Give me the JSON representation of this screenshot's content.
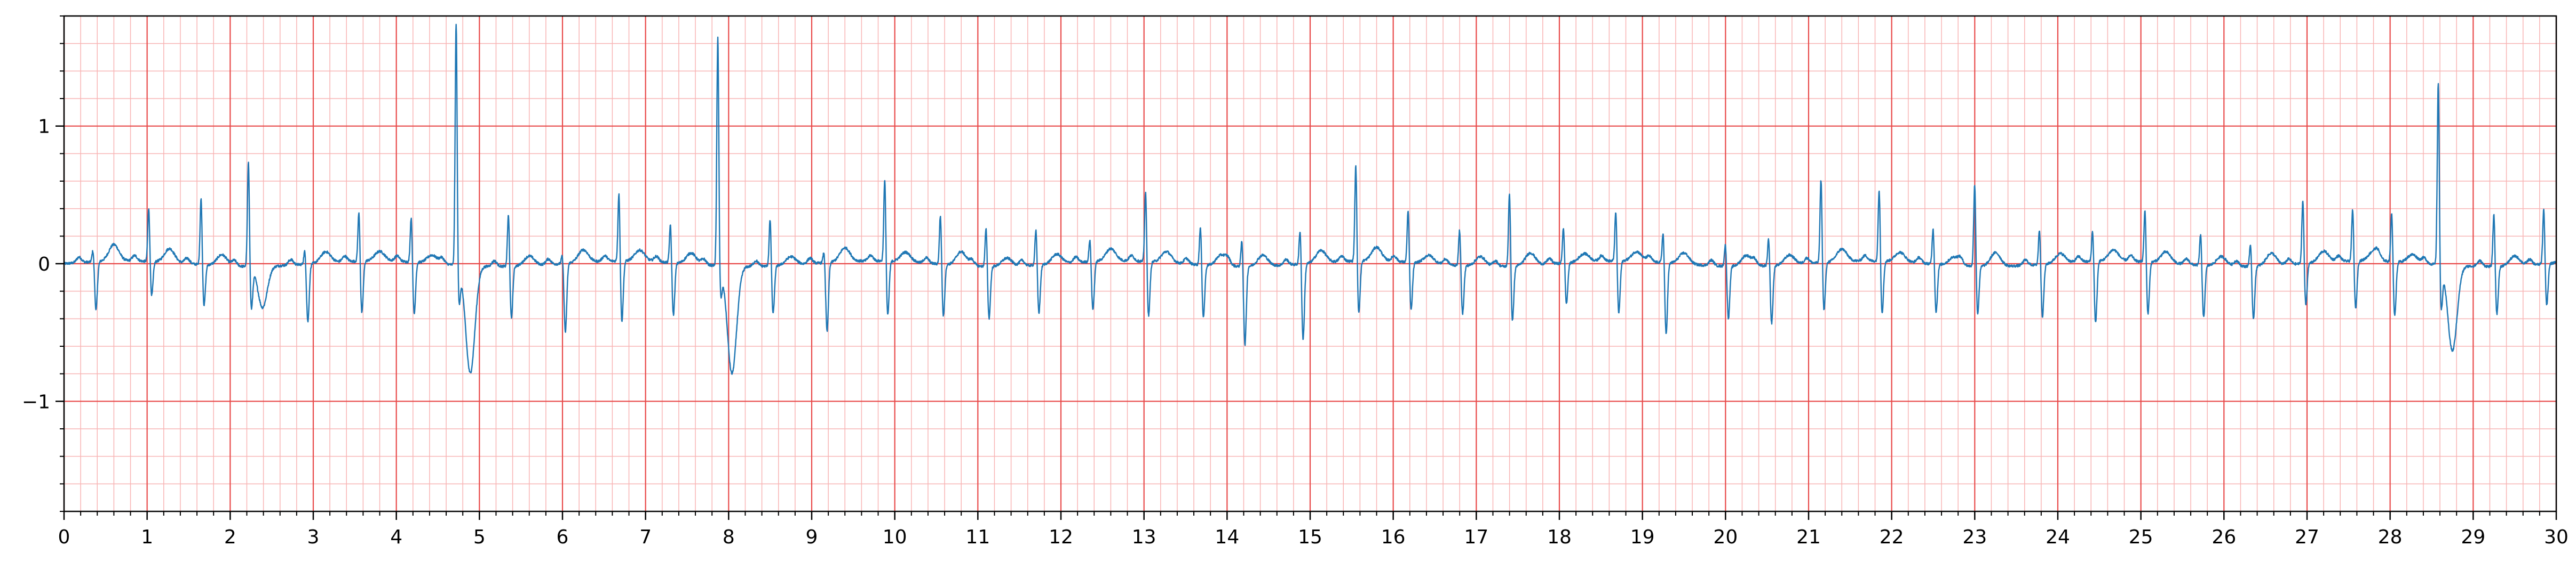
{
  "chart_data": {
    "type": "line",
    "title": "",
    "xlabel": "",
    "ylabel": "",
    "xlim": [
      0,
      30
    ],
    "ylim": [
      -1.8,
      1.8
    ],
    "x_ticks": [
      0,
      1,
      2,
      3,
      4,
      5,
      6,
      7,
      8,
      9,
      10,
      11,
      12,
      13,
      14,
      15,
      16,
      17,
      18,
      19,
      20,
      21,
      22,
      23,
      24,
      25,
      26,
      27,
      28,
      29,
      30
    ],
    "x_tick_labels": [
      "0",
      "1",
      "2",
      "3",
      "4",
      "5",
      "6",
      "7",
      "8",
      "9",
      "10",
      "11",
      "12",
      "13",
      "14",
      "15",
      "16",
      "17",
      "18",
      "19",
      "20",
      "21",
      "22",
      "23",
      "24",
      "25",
      "26",
      "27",
      "28",
      "29",
      "30"
    ],
    "y_ticks": [
      -1,
      0,
      1
    ],
    "y_tick_labels": [
      "−1",
      "0",
      "1"
    ],
    "grid": true,
    "major_grid": {
      "x_step": 1,
      "y_step": 1
    },
    "minor_grid": {
      "x_step": 0.2,
      "y_step": 0.2
    },
    "legend": "none",
    "colors": {
      "trace": "#1f77b4",
      "major_grid": "#e84a4a",
      "minor_grid": "#f8b4b4",
      "frame": "#000000"
    },
    "series": [
      {
        "beats": [
          {
            "t": 0.35,
            "amp": 0.1,
            "depth": -0.35,
            "twave": 0.12
          },
          {
            "t": 1.02,
            "amp": 0.4,
            "depth": -0.25,
            "twave": 0.1
          },
          {
            "t": 1.65,
            "amp": 0.5,
            "depth": -0.3,
            "twave": 0.08
          },
          {
            "t": 2.22,
            "amp": 0.78,
            "depth": -0.3,
            "twave": -0.3
          },
          {
            "t": 2.9,
            "amp": 0.12,
            "depth": -0.42,
            "twave": 0.08
          },
          {
            "t": 3.55,
            "amp": 0.38,
            "depth": -0.38,
            "twave": 0.07
          },
          {
            "t": 4.18,
            "amp": 0.35,
            "depth": -0.38,
            "twave": 0.06
          },
          {
            "t": 4.72,
            "amp": 1.78,
            "depth": -0.25,
            "twave": -0.78
          },
          {
            "t": 5.35,
            "amp": 0.4,
            "depth": -0.38,
            "twave": 0.07
          },
          {
            "t": 6.0,
            "amp": 0.08,
            "depth": -0.5,
            "twave": 0.09
          },
          {
            "t": 6.68,
            "amp": 0.52,
            "depth": -0.44,
            "twave": 0.08
          },
          {
            "t": 7.3,
            "amp": 0.3,
            "depth": -0.38,
            "twave": 0.08
          },
          {
            "t": 7.87,
            "amp": 1.68,
            "depth": -0.2,
            "twave": -0.78
          },
          {
            "t": 8.5,
            "amp": 0.36,
            "depth": -0.35,
            "twave": 0.06
          },
          {
            "t": 9.15,
            "amp": 0.1,
            "depth": -0.5,
            "twave": 0.1
          },
          {
            "t": 9.88,
            "amp": 0.62,
            "depth": -0.4,
            "twave": 0.07
          },
          {
            "t": 10.55,
            "amp": 0.38,
            "depth": -0.38,
            "twave": 0.1
          },
          {
            "t": 11.1,
            "amp": 0.3,
            "depth": -0.38,
            "twave": 0.06
          },
          {
            "t": 11.7,
            "amp": 0.28,
            "depth": -0.35,
            "twave": 0.07
          },
          {
            "t": 12.35,
            "amp": 0.18,
            "depth": -0.35,
            "twave": 0.09
          },
          {
            "t": 13.02,
            "amp": 0.53,
            "depth": -0.4,
            "twave": 0.08
          },
          {
            "t": 13.68,
            "amp": 0.3,
            "depth": -0.38,
            "twave": 0.08
          },
          {
            "t": 14.18,
            "amp": 0.22,
            "depth": -0.57,
            "twave": 0.08
          },
          {
            "t": 14.88,
            "amp": 0.28,
            "depth": -0.55,
            "twave": 0.09
          },
          {
            "t": 15.55,
            "amp": 0.72,
            "depth": -0.38,
            "twave": 0.1
          },
          {
            "t": 16.18,
            "amp": 0.4,
            "depth": -0.35,
            "twave": 0.06
          },
          {
            "t": 16.8,
            "amp": 0.28,
            "depth": -0.35,
            "twave": 0.07
          },
          {
            "t": 17.4,
            "amp": 0.56,
            "depth": -0.4,
            "twave": 0.09
          },
          {
            "t": 18.05,
            "amp": 0.28,
            "depth": -0.3,
            "twave": 0.06
          },
          {
            "t": 18.68,
            "amp": 0.38,
            "depth": -0.38,
            "twave": 0.07
          },
          {
            "t": 19.25,
            "amp": 0.25,
            "depth": -0.52,
            "twave": 0.08
          },
          {
            "t": 20.0,
            "amp": 0.18,
            "depth": -0.38,
            "twave": 0.08
          },
          {
            "t": 20.52,
            "amp": 0.22,
            "depth": -0.42,
            "twave": 0.07
          },
          {
            "t": 21.15,
            "amp": 0.63,
            "depth": -0.35,
            "twave": 0.09
          },
          {
            "t": 21.85,
            "amp": 0.55,
            "depth": -0.38,
            "twave": 0.07
          },
          {
            "t": 22.5,
            "amp": 0.28,
            "depth": -0.35,
            "twave": 0.06
          },
          {
            "t": 23.0,
            "amp": 0.62,
            "depth": -0.35,
            "twave": 0.1
          },
          {
            "t": 23.78,
            "amp": 0.28,
            "depth": -0.38,
            "twave": 0.07
          },
          {
            "t": 24.42,
            "amp": 0.25,
            "depth": -0.45,
            "twave": 0.08
          },
          {
            "t": 25.05,
            "amp": 0.4,
            "depth": -0.38,
            "twave": 0.08
          },
          {
            "t": 25.72,
            "amp": 0.25,
            "depth": -0.38,
            "twave": 0.07
          },
          {
            "t": 26.32,
            "amp": 0.18,
            "depth": -0.38,
            "twave": 0.09
          },
          {
            "t": 26.95,
            "amp": 0.48,
            "depth": -0.3,
            "twave": 0.08
          },
          {
            "t": 27.55,
            "amp": 0.4,
            "depth": -0.35,
            "twave": 0.07
          },
          {
            "t": 28.02,
            "amp": 0.38,
            "depth": -0.4,
            "twave": 0.06
          },
          {
            "t": 28.58,
            "amp": 1.35,
            "depth": -0.3,
            "twave": -0.62
          },
          {
            "t": 29.25,
            "amp": 0.4,
            "depth": -0.35,
            "twave": 0.07
          },
          {
            "t": 29.85,
            "amp": 0.42,
            "depth": -0.3,
            "twave": 0.05
          }
        ]
      }
    ]
  }
}
